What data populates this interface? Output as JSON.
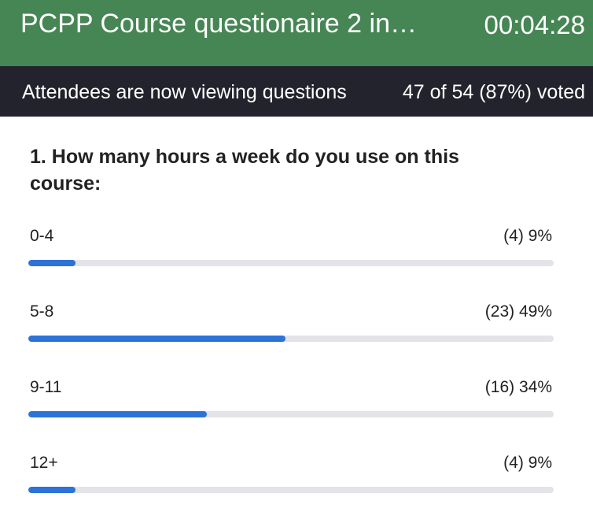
{
  "header": {
    "title": "PCPP Course questionaire 2 in…",
    "timer": "00:04:28"
  },
  "status": {
    "message": "Attendees are now viewing questions",
    "votes": "47 of 54 (87%) voted"
  },
  "question": {
    "text": "1. How many hours a week do you use on this course:",
    "options": [
      {
        "label": "0-4",
        "result": "(4) 9%",
        "percent": 9
      },
      {
        "label": "5-8",
        "result": "(23) 49%",
        "percent": 49
      },
      {
        "label": "9-11",
        "result": "(16) 34%",
        "percent": 34
      },
      {
        "label": "12+",
        "result": "(4) 9%",
        "percent": 9
      }
    ]
  },
  "colors": {
    "header_bg": "#468654",
    "status_bg": "#23232e",
    "bar_fill": "#2d72d9",
    "bar_track": "#e3e3e8"
  }
}
